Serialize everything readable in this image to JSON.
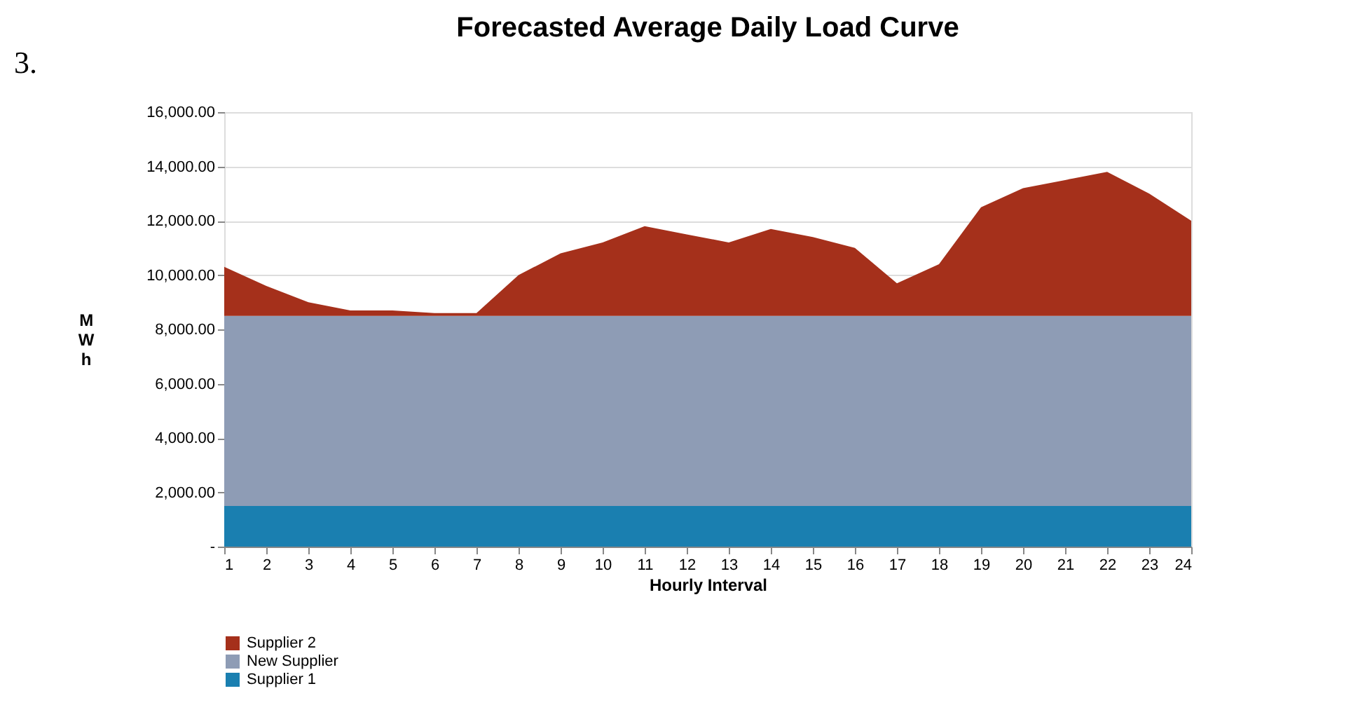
{
  "chart_data": {
    "type": "area",
    "title": "Forecasted Average Daily Load Curve",
    "xlabel": "Hourly Interval",
    "ylabel": "MWh",
    "annotations": [
      "3."
    ],
    "x": [
      1,
      2,
      3,
      4,
      5,
      6,
      7,
      8,
      9,
      10,
      11,
      12,
      13,
      14,
      15,
      16,
      17,
      18,
      19,
      20,
      21,
      22,
      23,
      24
    ],
    "stacked": true,
    "series": [
      {
        "name": "Supplier 1",
        "color": "#1a7fb0",
        "values": [
          1500,
          1500,
          1500,
          1500,
          1500,
          1500,
          1500,
          1500,
          1500,
          1500,
          1500,
          1500,
          1500,
          1500,
          1500,
          1500,
          1500,
          1500,
          1500,
          1500,
          1500,
          1500,
          1500,
          1500
        ]
      },
      {
        "name": "New Supplier",
        "color": "#8e9cb5",
        "values": [
          7000,
          7000,
          7000,
          7000,
          7000,
          7000,
          7000,
          7000,
          7000,
          7000,
          7000,
          7000,
          7000,
          7000,
          7000,
          7000,
          7000,
          7000,
          7000,
          7000,
          7000,
          7000,
          7000,
          7000
        ]
      },
      {
        "name": "Supplier 2",
        "color": "#a5301b",
        "values": [
          1800,
          1100,
          500,
          200,
          200,
          100,
          100,
          1500,
          2300,
          2700,
          3300,
          3000,
          2700,
          3200,
          2900,
          2500,
          1200,
          1900,
          4000,
          4700,
          5000,
          5300,
          4500,
          3500
        ]
      }
    ],
    "xlim": [
      1,
      24
    ],
    "xticks": [
      1,
      2,
      3,
      4,
      5,
      6,
      7,
      8,
      9,
      10,
      11,
      12,
      13,
      14,
      15,
      16,
      17,
      18,
      19,
      20,
      21,
      22,
      23,
      24
    ],
    "ylim": [
      0,
      16000
    ],
    "yticks": [
      {
        "value": 0,
        "label": "-"
      },
      {
        "value": 2000,
        "label": "2,000.00"
      },
      {
        "value": 4000,
        "label": "4,000.00"
      },
      {
        "value": 6000,
        "label": "6,000.00"
      },
      {
        "value": 8000,
        "label": "8,000.00"
      },
      {
        "value": 10000,
        "label": "10,000.00"
      },
      {
        "value": 12000,
        "label": "12,000.00"
      },
      {
        "value": 14000,
        "label": "14,000.00"
      },
      {
        "value": 16000,
        "label": "16,000.00"
      }
    ],
    "grid": "y",
    "legend": "bottom left"
  }
}
